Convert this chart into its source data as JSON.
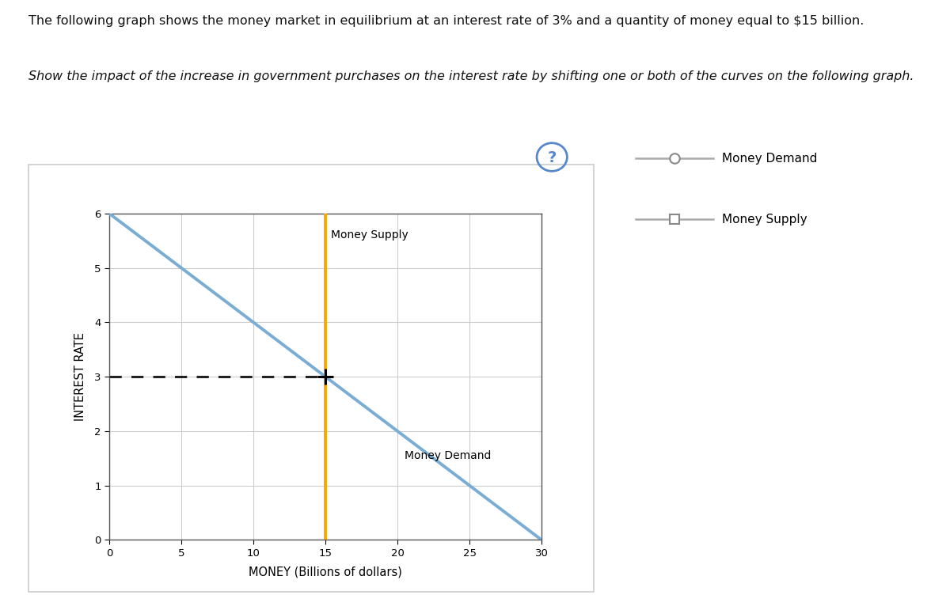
{
  "title1": "The following graph shows the money market in equilibrium at an interest rate of 3% and a quantity of money equal to $15 billion.",
  "title2": "Show the impact of the increase in government purchases on the interest rate by shifting one or both of the curves on the following graph.",
  "xlabel": "MONEY (Billions of dollars)",
  "ylabel": "INTEREST RATE",
  "xlim": [
    0,
    30
  ],
  "ylim": [
    0,
    6
  ],
  "xticks": [
    0,
    5,
    10,
    15,
    20,
    25,
    30
  ],
  "yticks": [
    0,
    1,
    2,
    3,
    4,
    5,
    6
  ],
  "equilibrium_x": 15,
  "equilibrium_y": 3,
  "money_supply_x": 15,
  "money_demand_x_start": 0,
  "money_demand_y_start": 6,
  "money_demand_x_end": 30,
  "money_demand_y_end": 0,
  "demand_color": "#7aadd4",
  "supply_color": "#FFA500",
  "dashed_color": "#222222",
  "dashed_y": 3,
  "panel_border_color": "#CCCCCC",
  "grid_color": "#CCCCCC",
  "legend_line_color": "#AAAAAA",
  "legend_marker_edge_color": "#888888",
  "qmark_color": "#5588CC",
  "text_color": "#111111"
}
